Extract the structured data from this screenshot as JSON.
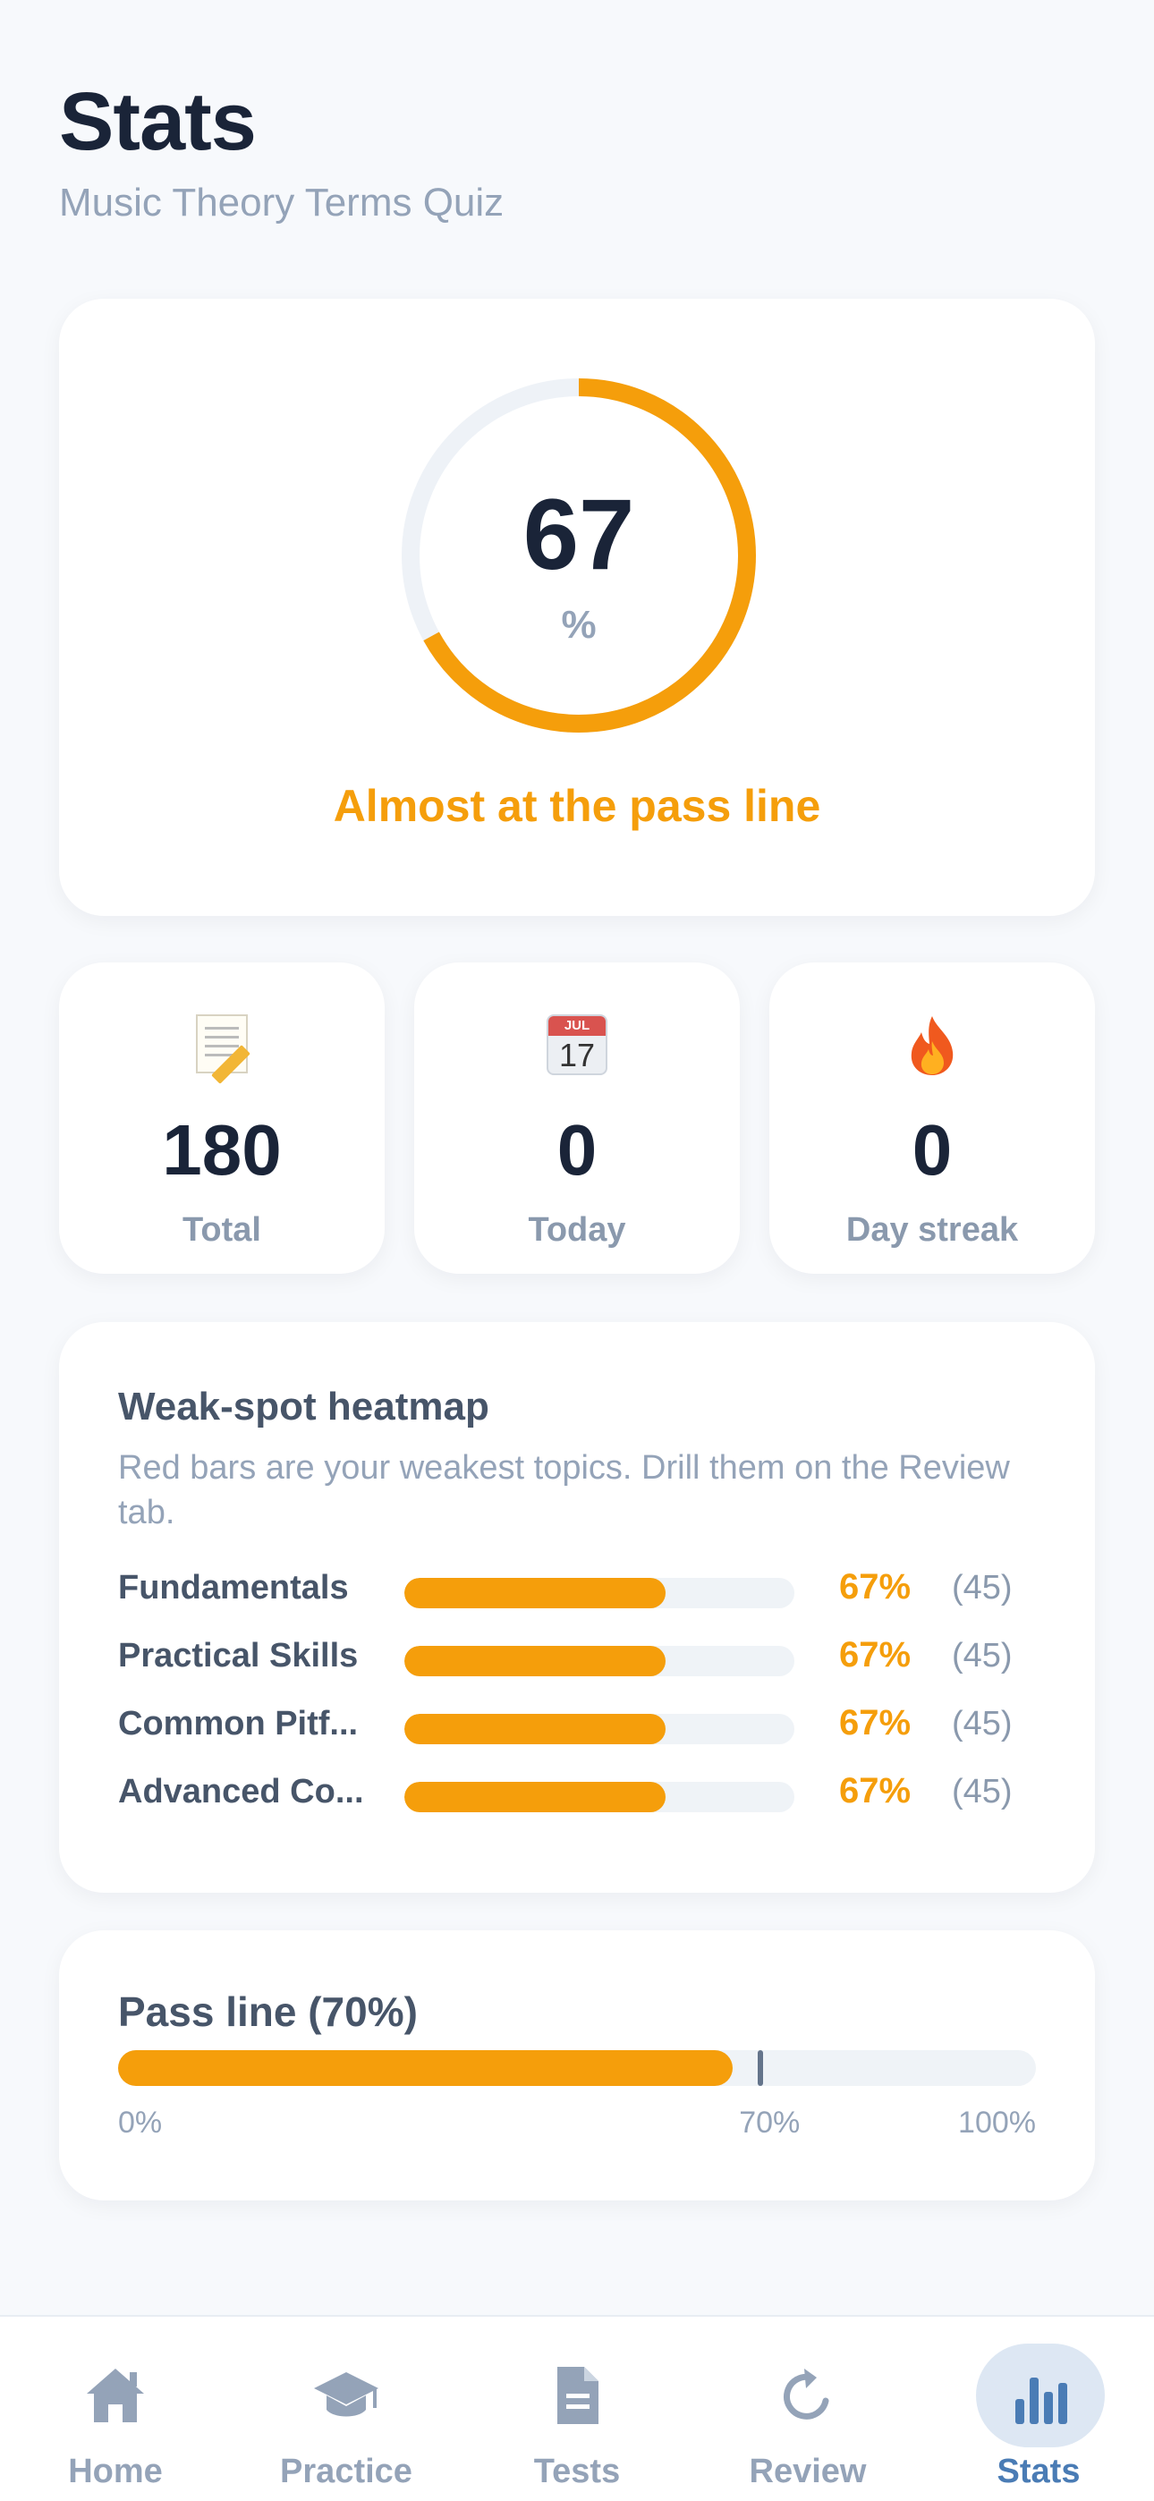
{
  "header": {
    "title": "Stats",
    "subtitle": "Music Theory Terms Quiz"
  },
  "score": {
    "value": "67",
    "unit": "%",
    "fraction": 0.67,
    "message": "Almost at the pass line",
    "ring_color": "#f59e0b",
    "track_color": "#eef2f7"
  },
  "stats": [
    {
      "icon": "memo-icon",
      "value": "180",
      "label": "Total"
    },
    {
      "icon": "calendar-icon",
      "value": "0",
      "label": "Today",
      "calendar_month": "JUL",
      "calendar_day": "17"
    },
    {
      "icon": "fire-icon",
      "value": "0",
      "label": "Day streak"
    }
  ],
  "heatmap": {
    "title": "Weak-spot heatmap",
    "description": "Red bars are your weakest topics. Drill them on the Review tab.",
    "rows": [
      {
        "name": "Fundamentals",
        "percent_label": "67%",
        "fraction": 0.67,
        "count": "(45)"
      },
      {
        "name": "Practical Skills",
        "percent_label": "67%",
        "fraction": 0.67,
        "count": "(45)"
      },
      {
        "name": "Common Pitf...",
        "percent_label": "67%",
        "fraction": 0.67,
        "count": "(45)"
      },
      {
        "name": "Advanced Co...",
        "percent_label": "67%",
        "fraction": 0.67,
        "count": "(45)"
      }
    ]
  },
  "pass_line": {
    "title": "Pass line (70%)",
    "current_fraction": 0.67,
    "threshold_fraction": 0.7,
    "tick_min": "0%",
    "tick_threshold": "70%",
    "tick_max": "100%"
  },
  "tabs": [
    {
      "label": "Home",
      "icon": "home-icon",
      "active": false
    },
    {
      "label": "Practice",
      "icon": "graduation-cap-icon",
      "active": false
    },
    {
      "label": "Tests",
      "icon": "document-icon",
      "active": false
    },
    {
      "label": "Review",
      "icon": "refresh-icon",
      "active": false
    },
    {
      "label": "Stats",
      "icon": "bar-chart-icon",
      "active": true
    }
  ],
  "colors": {
    "accent": "#f59e0b",
    "active_tab": "#4a7cb5",
    "inactive_tab": "#94a3b8"
  }
}
